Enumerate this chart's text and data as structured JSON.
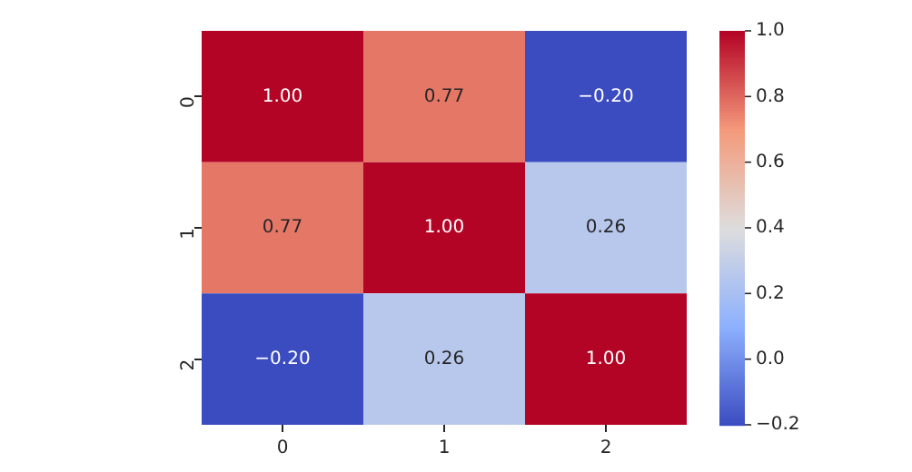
{
  "chart_data": {
    "type": "heatmap",
    "categories": [
      "0",
      "1",
      "2"
    ],
    "y_categories": [
      "0",
      "1",
      "2"
    ],
    "cells": [
      [
        1.0,
        0.77,
        -0.2
      ],
      [
        0.77,
        1.0,
        0.26
      ],
      [
        -0.2,
        0.26,
        1.0
      ]
    ],
    "cell_labels": [
      [
        "1.00",
        "0.77",
        "−0.20"
      ],
      [
        "0.77",
        "1.00",
        "0.26"
      ],
      [
        "−0.20",
        "0.26",
        "1.00"
      ]
    ],
    "clim": [
      -0.2,
      1.0
    ],
    "cticks": [
      {
        "value": -0.2,
        "label": "−0.2"
      },
      {
        "value": 0.0,
        "label": "0.0"
      },
      {
        "value": 0.2,
        "label": "0.2"
      },
      {
        "value": 0.4,
        "label": "0.4"
      },
      {
        "value": 0.6,
        "label": "0.6"
      },
      {
        "value": 0.8,
        "label": "0.8"
      },
      {
        "value": 1.0,
        "label": "1.0"
      }
    ]
  }
}
